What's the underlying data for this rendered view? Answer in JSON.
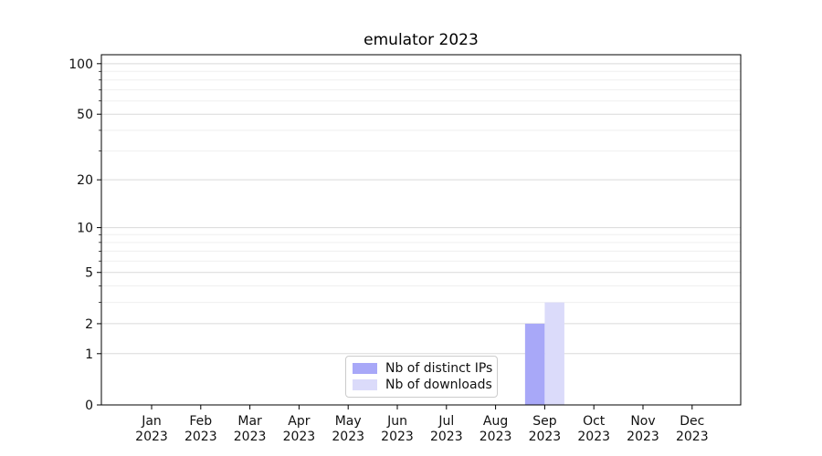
{
  "chart_data": {
    "type": "bar",
    "title": "emulator 2023",
    "categories": [
      "Jan",
      "Feb",
      "Mar",
      "Apr",
      "May",
      "Jun",
      "Jul",
      "Aug",
      "Sep",
      "Oct",
      "Nov",
      "Dec"
    ],
    "category_year": "2023",
    "series": [
      {
        "name": "Nb of distinct IPs",
        "color": "#a8a8f8",
        "values": [
          0,
          0,
          0,
          0,
          0,
          0,
          0,
          0,
          2,
          0,
          0,
          0
        ]
      },
      {
        "name": "Nb of downloads",
        "color": "#dbdbfa",
        "values": [
          0,
          0,
          0,
          0,
          0,
          0,
          0,
          0,
          3,
          0,
          0,
          0
        ]
      }
    ],
    "xlabel": "",
    "ylabel": "",
    "yscale": "log1p",
    "ylim": [
      0,
      113
    ],
    "yticks": [
      0,
      1,
      2,
      5,
      10,
      20,
      50,
      100
    ],
    "yticks_minor": [
      3,
      4,
      6,
      7,
      8,
      9,
      30,
      40,
      60,
      70,
      80,
      90
    ],
    "grid": "horizontal major+minor",
    "legend_position": "lower center",
    "colors": {
      "background": "#ffffff",
      "axis": "#000000",
      "tick_text": "#111111",
      "grid_major": "#dadada",
      "grid_minor": "#efefef",
      "legend_border": "#cccccc"
    }
  }
}
